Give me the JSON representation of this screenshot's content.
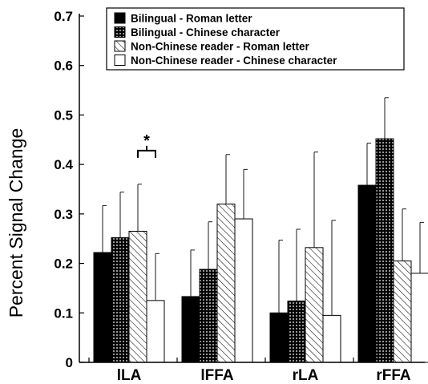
{
  "chart_data": {
    "type": "bar",
    "title": "",
    "xlabel": "",
    "ylabel": "Percent Signal Change",
    "ylim": [
      0,
      0.7
    ],
    "yticks": [
      "0",
      "0.1",
      "0.2",
      "0.3",
      "0.4",
      "0.5",
      "0.6",
      "0.7"
    ],
    "grid": false,
    "legend_position": "top-right",
    "categories": [
      "lLA",
      "lFFA",
      "rLA",
      "rFFA"
    ],
    "series": [
      {
        "name": "Bilingual - Roman letter",
        "fill": "solid",
        "color": "#000000",
        "values": [
          0.222,
          0.133,
          0.1,
          0.358
        ],
        "errors": [
          0.095,
          0.094,
          0.147,
          0.085
        ]
      },
      {
        "name": "Bilingual - Chinese character",
        "fill": "dotted",
        "color": "#222222",
        "values": [
          0.252,
          0.188,
          0.124,
          0.452
        ],
        "errors": [
          0.092,
          0.096,
          0.145,
          0.083
        ]
      },
      {
        "name": "Non-Chinese reader - Roman letter",
        "fill": "hatched",
        "color": "#ffffff",
        "values": [
          0.265,
          0.32,
          0.232,
          0.205
        ],
        "errors": [
          0.095,
          0.1,
          0.193,
          0.105
        ]
      },
      {
        "name": "Non-Chinese reader - Chinese character",
        "fill": "empty",
        "color": "#ffffff",
        "values": [
          0.125,
          0.29,
          0.095,
          0.18
        ],
        "errors": [
          0.095,
          0.1,
          0.192,
          0.103
        ]
      }
    ],
    "annotations": [
      {
        "text": "*",
        "category": "lLA",
        "between_series": [
          2,
          3
        ]
      }
    ]
  }
}
